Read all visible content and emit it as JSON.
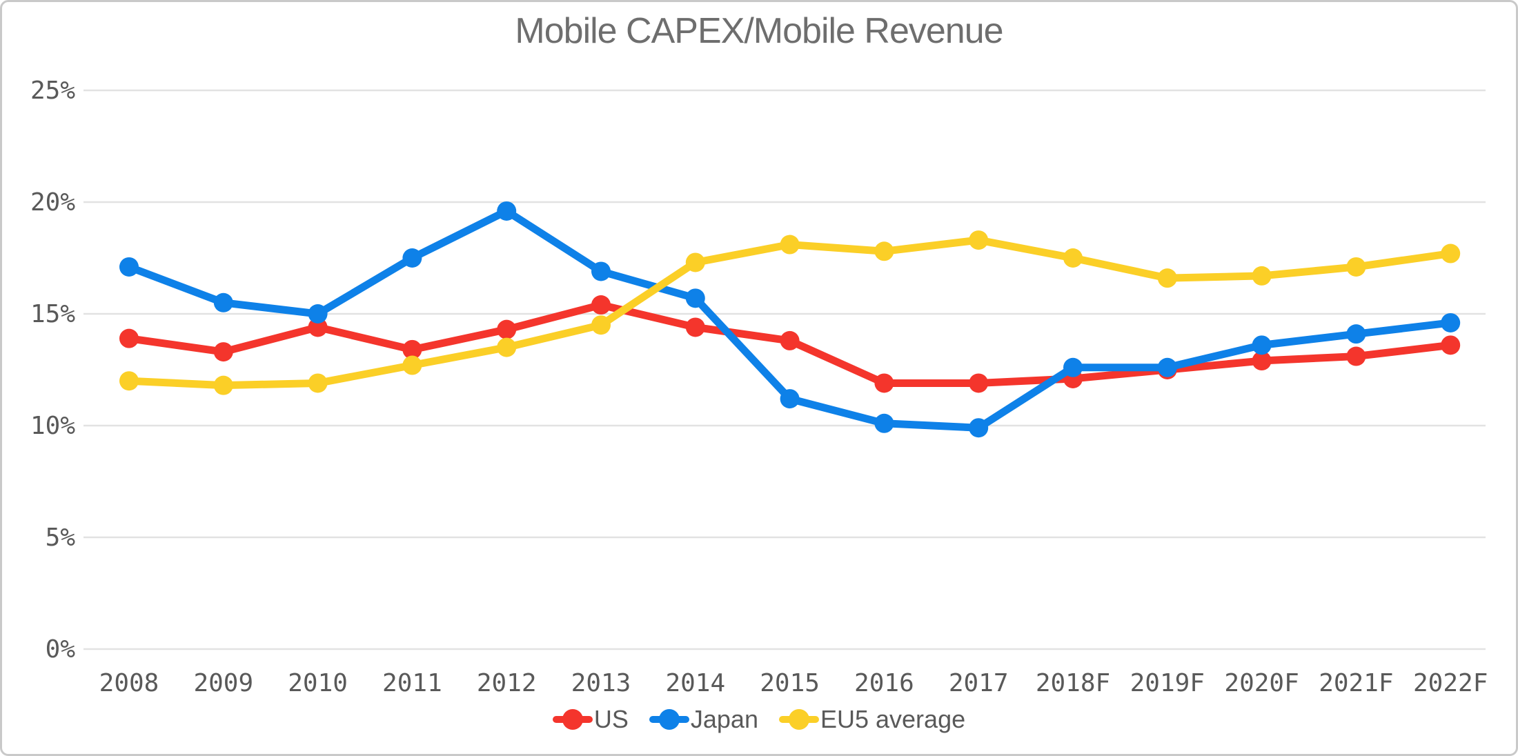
{
  "chart_data": {
    "type": "line",
    "title": "Mobile CAPEX/Mobile Revenue",
    "categories": [
      "2008",
      "2009",
      "2010",
      "2011",
      "2012",
      "2013",
      "2014",
      "2015",
      "2016",
      "2017",
      "2018F",
      "2019F",
      "2020F",
      "2021F",
      "2022F"
    ],
    "y_axis": {
      "ticks": [
        "0%",
        "5%",
        "10%",
        "15%",
        "20%",
        "25%"
      ],
      "tick_values": [
        0,
        5,
        10,
        15,
        20,
        25
      ],
      "min": 0,
      "max": 25,
      "grid": true
    },
    "series": [
      {
        "name": "US",
        "color": "#F4352C",
        "values": [
          13.9,
          13.3,
          14.4,
          13.4,
          14.3,
          15.4,
          14.4,
          13.8,
          11.9,
          11.9,
          12.1,
          12.5,
          12.9,
          13.1,
          13.6
        ]
      },
      {
        "name": "Japan",
        "color": "#0E81E8",
        "values": [
          17.1,
          15.5,
          15.0,
          17.5,
          19.6,
          16.9,
          15.7,
          11.2,
          10.1,
          9.9,
          12.6,
          12.6,
          13.6,
          14.1,
          14.6
        ]
      },
      {
        "name": "EU5 average",
        "color": "#FBCF27",
        "values": [
          12.0,
          11.8,
          11.9,
          12.7,
          13.5,
          14.5,
          17.3,
          18.1,
          17.8,
          18.3,
          17.5,
          16.6,
          16.7,
          17.1,
          17.7
        ]
      }
    ],
    "legend_position": "bottom",
    "colors": {
      "background": "#FFFFFF",
      "border": "#C9C9C9",
      "grid": "#E2E2E2",
      "tick_text": "#595959",
      "title_text": "#6E6E6E"
    }
  }
}
